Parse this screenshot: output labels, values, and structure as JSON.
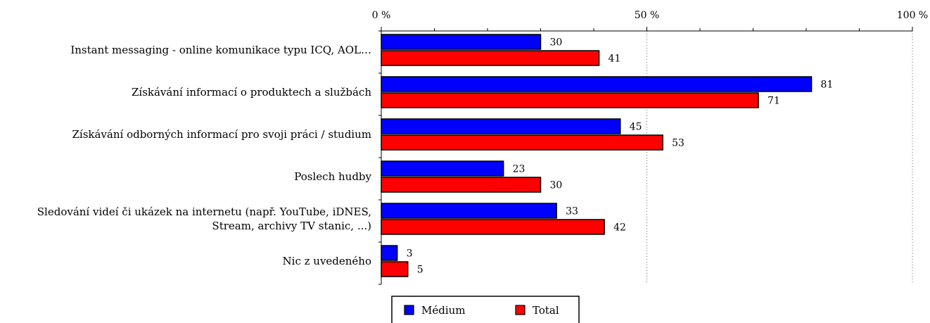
{
  "chart_data": {
    "type": "bar",
    "orientation": "horizontal",
    "title": "",
    "xlabel": "",
    "ylabel": "",
    "xlim": [
      0,
      100
    ],
    "x_ticks": [
      "0 %",
      "50 %",
      "100 %"
    ],
    "grid": false,
    "legend_position": "bottom",
    "categories": [
      [
        "Instant messaging - online komunikace typu ICQ, AOL…"
      ],
      [
        "Získávání informací o produktech a službách"
      ],
      [
        "Získávání odborných informací pro svoji práci / studium"
      ],
      [
        "Poslech hudby"
      ],
      [
        "Sledování videí či ukázek na internetu (např. YouTube, iDNES,",
        "Stream, archivy TV stanic, ...)"
      ],
      [
        "Nic z uvedeného"
      ]
    ],
    "series": [
      {
        "name": "Médium",
        "color": "#0000ff",
        "values": [
          30,
          81,
          45,
          23,
          33,
          3
        ]
      },
      {
        "name": "Total",
        "color": "#ff0000",
        "values": [
          41,
          71,
          53,
          30,
          42,
          5
        ]
      }
    ]
  }
}
